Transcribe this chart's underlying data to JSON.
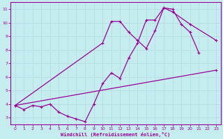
{
  "xlabel": "Windchill (Refroidissement éolien,°C)",
  "xlim": [
    -0.5,
    23.5
  ],
  "ylim": [
    2.5,
    11.5
  ],
  "xticks": [
    0,
    1,
    2,
    3,
    4,
    5,
    6,
    7,
    8,
    9,
    10,
    11,
    12,
    13,
    14,
    15,
    16,
    17,
    18,
    19,
    20,
    21,
    22,
    23
  ],
  "yticks": [
    3,
    4,
    5,
    6,
    7,
    8,
    9,
    10,
    11
  ],
  "bg_color": "#c5ecee",
  "line_color": "#990099",
  "grid_color": "#b8dfe3",
  "line1_x": [
    0,
    1,
    2,
    3,
    4,
    5,
    6,
    7,
    8,
    9,
    10,
    11,
    12,
    13,
    14,
    15,
    16,
    17,
    18,
    19,
    20,
    21
  ],
  "line1_y": [
    3.9,
    3.6,
    3.9,
    3.8,
    4.0,
    3.4,
    3.1,
    2.9,
    2.7,
    4.0,
    5.5,
    6.3,
    5.9,
    7.4,
    8.5,
    10.2,
    10.2,
    11.1,
    11.0,
    9.9,
    9.3,
    7.8
  ],
  "line2_x": [
    0,
    23
  ],
  "line2_y": [
    3.9,
    6.5
  ],
  "line3_x": [
    0,
    10,
    11,
    12,
    13,
    14,
    15,
    16,
    17,
    18,
    20,
    23
  ],
  "line3_y": [
    3.9,
    8.5,
    10.1,
    10.1,
    9.3,
    8.7,
    8.1,
    9.4,
    11.1,
    10.8,
    9.9,
    8.7
  ]
}
